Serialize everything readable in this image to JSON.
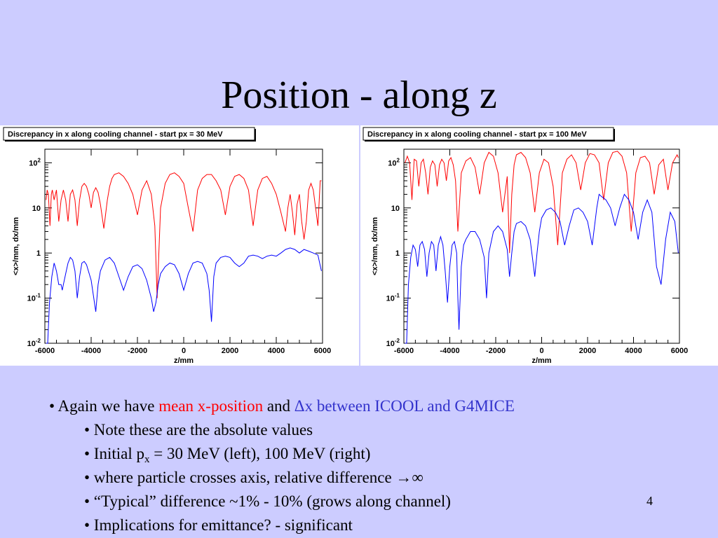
{
  "slide": {
    "title": "Position - along z",
    "page_number": "4"
  },
  "bullets": {
    "b1": {
      "prefix": "• Again we have ",
      "red_text": "mean x-position",
      "middle": " and ",
      "blue_text": "Δx between ICOOL and G4MICE"
    },
    "b2": "• Note these are the absolute values",
    "b3": {
      "before": "• Initial p",
      "sub": "x",
      "after": " = 30 MeV (left), 100 MeV (right)"
    },
    "b4": {
      "text": "• where particle crosses axis, relative difference ",
      "symbol": "→∞"
    },
    "b5": "• “Typical” difference ~1% - 10% (grows along channel)",
    "b6": "• Implications for emittance? - significant"
  },
  "chart_data": [
    {
      "type": "line",
      "title": "Discrepancy in x along cooling channel - start px = 30 MeV",
      "xlabel": "z/mm",
      "ylabel": "<x>/mm, dx/mm",
      "xlim": [
        -6000,
        6000
      ],
      "ylim": [
        0.01,
        200
      ],
      "yscale": "log",
      "x_ticks": [
        "-6000",
        "-4000",
        "-2000",
        "0",
        "2000",
        "4000",
        "6000"
      ],
      "y_ticks": [
        {
          "value": 0.01,
          "base": "10",
          "exp": "-2"
        },
        {
          "value": 0.1,
          "base": "10",
          "exp": "-1"
        },
        {
          "value": 1,
          "base": "1",
          "exp": ""
        },
        {
          "value": 10,
          "base": "10",
          "exp": ""
        },
        {
          "value": 100,
          "base": "10",
          "exp": "2"
        }
      ],
      "series": [
        {
          "color": "#ff0000",
          "x": [
            -5950,
            -5900,
            -5850,
            -5780,
            -5720,
            -5680,
            -5600,
            -5500,
            -5400,
            -5300,
            -5200,
            -5100,
            -5000,
            -4900,
            -4800,
            -4700,
            -4600,
            -4500,
            -4400,
            -4300,
            -4200,
            -4100,
            -4000,
            -3900,
            -3800,
            -3700,
            -3600,
            -3450,
            -3300,
            -3200,
            -3100,
            -3000,
            -2800,
            -2600,
            -2400,
            -2200,
            -2000,
            -1800,
            -1600,
            -1400,
            -1250,
            -1150,
            -1000,
            -800,
            -600,
            -400,
            -200,
            0,
            200,
            400,
            600,
            800,
            1000,
            1200,
            1400,
            1600,
            1800,
            2000,
            2200,
            2400,
            2600,
            2800,
            3000,
            3200,
            3400,
            3600,
            3800,
            4000,
            4200,
            4400,
            4500,
            4600,
            4700,
            4800,
            4900,
            5000,
            5100,
            5200,
            5300,
            5400,
            5500,
            5600,
            5700,
            5800,
            5900,
            5950
          ],
          "y": [
            15,
            25,
            20,
            4,
            20,
            25,
            15,
            25,
            5,
            15,
            25,
            15,
            5,
            20,
            25,
            15,
            4,
            15,
            30,
            35,
            30,
            20,
            10,
            22,
            28,
            22,
            12,
            3.5,
            15,
            30,
            45,
            55,
            60,
            50,
            35,
            20,
            7,
            25,
            40,
            20,
            4,
            0.1,
            10,
            35,
            55,
            60,
            50,
            35,
            10,
            3,
            25,
            45,
            55,
            55,
            40,
            25,
            7,
            30,
            50,
            55,
            45,
            25,
            4,
            25,
            45,
            50,
            35,
            20,
            8,
            3,
            10,
            20,
            8,
            2.5,
            12,
            20,
            5,
            2,
            5,
            25,
            35,
            25,
            10,
            4,
            40,
            40
          ]
        },
        {
          "color": "#0000ff",
          "x": [
            -5950,
            -5880,
            -5800,
            -5700,
            -5600,
            -5500,
            -5400,
            -5300,
            -5250,
            -5200,
            -5100,
            -5000,
            -4900,
            -4800,
            -4700,
            -4600,
            -4500,
            -4400,
            -4300,
            -4200,
            -4000,
            -3800,
            -3700,
            -3600,
            -3400,
            -3200,
            -3000,
            -2800,
            -2600,
            -2400,
            -2200,
            -2000,
            -1800,
            -1600,
            -1400,
            -1300,
            -1200,
            -1100,
            -1000,
            -800,
            -600,
            -400,
            -200,
            0,
            200,
            400,
            600,
            800,
            1000,
            1100,
            1200,
            1300,
            1400,
            1600,
            1800,
            2000,
            2200,
            2400,
            2600,
            2800,
            3000,
            3200,
            3400,
            3600,
            3800,
            4000,
            4200,
            4400,
            4600,
            4800,
            5000,
            5200,
            5400,
            5600,
            5800,
            5950
          ],
          "y": [
            0.01,
            0.01,
            0.08,
            0.3,
            0.6,
            0.4,
            0.2,
            0.2,
            0.15,
            0.2,
            0.35,
            0.6,
            0.8,
            0.7,
            0.4,
            0.1,
            0.3,
            0.6,
            0.65,
            0.55,
            0.25,
            0.05,
            0.2,
            0.4,
            0.7,
            0.8,
            0.6,
            0.3,
            0.15,
            0.3,
            0.5,
            0.55,
            0.45,
            0.25,
            0.1,
            0.05,
            0.08,
            0.2,
            0.35,
            0.5,
            0.6,
            0.55,
            0.35,
            0.15,
            0.35,
            0.6,
            0.65,
            0.6,
            0.35,
            0.15,
            0.03,
            0.3,
            0.6,
            0.8,
            0.85,
            0.8,
            0.6,
            0.5,
            0.6,
            0.85,
            0.9,
            0.85,
            0.75,
            0.85,
            0.9,
            0.85,
            1,
            1.2,
            1.3,
            1.2,
            1,
            1.2,
            1.1,
            1,
            0.9,
            0.4
          ]
        }
      ]
    },
    {
      "type": "line",
      "title": "Discrepancy in x along cooling channel - start px = 100 MeV",
      "xlabel": "z/mm",
      "ylabel": "<x>/mm, dx/mm",
      "xlim": [
        -6000,
        6000
      ],
      "ylim": [
        0.01,
        200
      ],
      "yscale": "log",
      "x_ticks": [
        "-6000",
        "-4000",
        "-2000",
        "0",
        "2000",
        "4000",
        "6000"
      ],
      "y_ticks": [
        {
          "value": 0.01,
          "base": "10",
          "exp": "-2"
        },
        {
          "value": 0.1,
          "base": "10",
          "exp": "-1"
        },
        {
          "value": 1,
          "base": "1",
          "exp": ""
        },
        {
          "value": 10,
          "base": "10",
          "exp": ""
        },
        {
          "value": 100,
          "base": "10",
          "exp": "2"
        }
      ],
      "series": [
        {
          "color": "#ff0000",
          "x": [
            -5950,
            -5850,
            -5750,
            -5650,
            -5550,
            -5450,
            -5350,
            -5250,
            -5150,
            -5050,
            -4950,
            -4850,
            -4750,
            -4650,
            -4550,
            -4450,
            -4350,
            -4250,
            -4150,
            -4050,
            -3950,
            -3850,
            -3750,
            -3650,
            -3500,
            -3300,
            -3100,
            -2900,
            -2700,
            -2500,
            -2300,
            -2100,
            -1900,
            -1700,
            -1500,
            -1400,
            -1300,
            -1200,
            -1100,
            -900,
            -700,
            -500,
            -300,
            -100,
            100,
            300,
            500,
            700,
            900,
            1100,
            1300,
            1500,
            1700,
            1900,
            2100,
            2300,
            2500,
            2700,
            2900,
            3100,
            3300,
            3500,
            3700,
            3900,
            4100,
            4300,
            4500,
            4700,
            4900,
            5100,
            5300,
            5500,
            5700,
            5900,
            5950
          ],
          "y": [
            100,
            140,
            100,
            15,
            120,
            110,
            30,
            100,
            120,
            60,
            20,
            80,
            110,
            90,
            30,
            90,
            120,
            100,
            40,
            110,
            130,
            90,
            40,
            3,
            60,
            110,
            130,
            80,
            20,
            100,
            170,
            140,
            60,
            8,
            50,
            1,
            20,
            90,
            150,
            170,
            130,
            60,
            8,
            60,
            120,
            100,
            30,
            1.5,
            60,
            120,
            150,
            100,
            25,
            100,
            160,
            150,
            100,
            15,
            100,
            170,
            180,
            140,
            60,
            3,
            60,
            130,
            140,
            100,
            20,
            90,
            120,
            25,
            100,
            150,
            130
          ]
        },
        {
          "color": "#0000ff",
          "x": [
            -5950,
            -5880,
            -5800,
            -5700,
            -5600,
            -5500,
            -5400,
            -5300,
            -5200,
            -5100,
            -5000,
            -4900,
            -4800,
            -4700,
            -4600,
            -4500,
            -4400,
            -4300,
            -4200,
            -4100,
            -4000,
            -3900,
            -3800,
            -3700,
            -3650,
            -3600,
            -3500,
            -3400,
            -3300,
            -3100,
            -2900,
            -2700,
            -2500,
            -2400,
            -2300,
            -2100,
            -1900,
            -1700,
            -1500,
            -1400,
            -1300,
            -1200,
            -1100,
            -900,
            -700,
            -500,
            -300,
            -200,
            -100,
            0,
            200,
            400,
            600,
            800,
            1000,
            1200,
            1400,
            1600,
            1800,
            2000,
            2200,
            2400,
            2500,
            2600,
            2800,
            3000,
            3200,
            3400,
            3600,
            3800,
            4000,
            4200,
            4400,
            4600,
            4800,
            5000,
            5200,
            5400,
            5600,
            5800,
            5950
          ],
          "y": [
            0.01,
            0.01,
            0.2,
            0.8,
            1.5,
            1.2,
            0.5,
            1.5,
            1.8,
            1.2,
            0.3,
            1,
            1.8,
            1.5,
            0.4,
            1.5,
            2.3,
            1.5,
            0.4,
            0.08,
            0.5,
            1.5,
            1.8,
            1,
            0.1,
            0.02,
            0.5,
            1.5,
            2,
            3,
            3,
            2,
            0.8,
            0.1,
            1,
            3,
            4,
            3,
            1.2,
            0.3,
            1,
            3,
            4.5,
            5,
            4,
            2,
            0.3,
            1,
            3,
            6,
            9,
            10,
            8,
            5,
            1.5,
            4,
            9,
            10,
            8,
            5,
            1.5,
            10,
            20,
            18,
            15,
            10,
            4,
            10,
            20,
            15,
            8,
            2,
            8,
            15,
            8,
            0.5,
            0.2,
            2,
            8,
            5,
            1
          ]
        }
      ]
    }
  ]
}
